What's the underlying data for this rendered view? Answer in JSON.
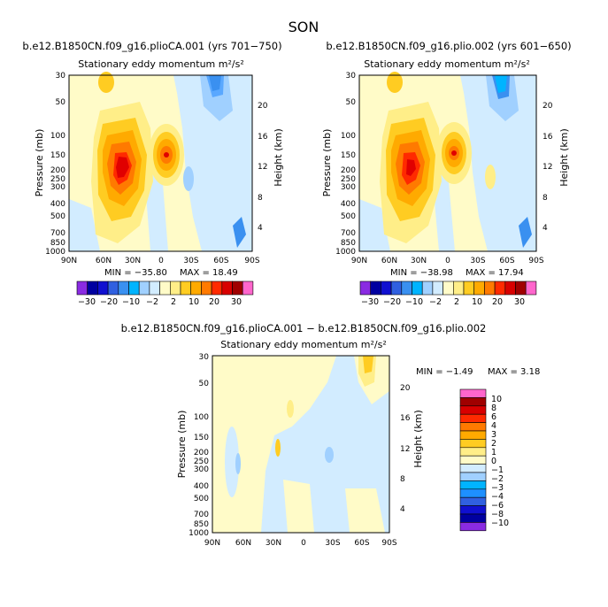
{
  "figure": {
    "season": "SON",
    "unit_html": "m²/s²"
  },
  "colors": {
    "levels": [
      -30,
      -20,
      -10,
      -2,
      2,
      10,
      20,
      30
    ],
    "panel_palette": [
      "#8a2be2",
      "#0000a0",
      "#1010d0",
      "#3060e0",
      "#3a90f0",
      "#00b4ff",
      "#a0d0ff",
      "#d2ecff",
      "#fffbc8",
      "#ffee88",
      "#ffcc22",
      "#ffaa00",
      "#ff7a00",
      "#ff2a00",
      "#d80000",
      "#a00000",
      "#ff66cc"
    ],
    "diff_palette": [
      "#8a2be2",
      "#0000a0",
      "#1010d0",
      "#3060e0",
      "#1e90ff",
      "#00b4ff",
      "#a0d0ff",
      "#d2ecff",
      "#fffbc8",
      "#ffee88",
      "#ffcc22",
      "#ffaa00",
      "#ff7a00",
      "#ff2a00",
      "#d80000",
      "#a00000",
      "#ff66cc"
    ]
  },
  "chart_data": [
    {
      "type": "heatmap",
      "title": "b.e12.B1850CN.f09_g16.plioCA.001 (yrs 701−750)",
      "subtitle": "Stationary eddy momentum  m²/s²",
      "xlabel": "",
      "ylabel": "Pressure (mb)",
      "ylabel_right": "Height (km)",
      "x_ticks": [
        "90N",
        "60N",
        "30N",
        "0",
        "30S",
        "60S",
        "90S"
      ],
      "y_ticks": [
        "30",
        "50",
        "100",
        "150",
        "200",
        "250",
        "300",
        "400",
        "500",
        "700",
        "850",
        "1000"
      ],
      "y_ticks_right": [
        "4",
        "8",
        "12",
        "16",
        "20"
      ],
      "x_range": [
        90,
        -90
      ],
      "y_range": [
        1000,
        30
      ],
      "min_text": "MIN = −35.80",
      "max_text": "MAX =  18.49",
      "colorbar_labels": [
        "−30",
        "−20",
        "−10",
        "−2",
        "2",
        "10",
        "20",
        "30"
      ]
    },
    {
      "type": "heatmap",
      "title": "b.e12.B1850CN.f09_g16.plio.002 (yrs 601−650)",
      "subtitle": "Stationary eddy momentum  m²/s²",
      "xlabel": "",
      "ylabel": "Pressure (mb)",
      "ylabel_right": "Height (km)",
      "x_ticks": [
        "90N",
        "60N",
        "30N",
        "0",
        "30S",
        "60S",
        "90S"
      ],
      "y_ticks": [
        "30",
        "50",
        "100",
        "150",
        "200",
        "250",
        "300",
        "400",
        "500",
        "700",
        "850",
        "1000"
      ],
      "y_ticks_right": [
        "4",
        "8",
        "12",
        "16",
        "20"
      ],
      "x_range": [
        90,
        -90
      ],
      "y_range": [
        1000,
        30
      ],
      "min_text": "MIN = −38.98",
      "max_text": "MAX =  17.94",
      "colorbar_labels": [
        "−30",
        "−20",
        "−10",
        "−2",
        "2",
        "10",
        "20",
        "30"
      ]
    },
    {
      "type": "heatmap",
      "title": "b.e12.B1850CN.f09_g16.plioCA.001 − b.e12.B1850CN.f09_g16.plio.002",
      "subtitle": "Stationary eddy momentum  m²/s²",
      "xlabel": "",
      "ylabel": "Pressure (mb)",
      "ylabel_right": "Height (km)",
      "x_ticks": [
        "90N",
        "60N",
        "30N",
        "0",
        "30S",
        "60S",
        "90S"
      ],
      "y_ticks": [
        "30",
        "50",
        "100",
        "150",
        "200",
        "250",
        "300",
        "400",
        "500",
        "700",
        "850",
        "1000"
      ],
      "y_ticks_right": [
        "4",
        "8",
        "12",
        "16",
        "20"
      ],
      "x_range": [
        90,
        -90
      ],
      "y_range": [
        1000,
        30
      ],
      "min_text": "MIN =  −1.49",
      "max_text": "MAX =   3.18",
      "colorbar_labels": [
        "10",
        "8",
        "6",
        "4",
        "3",
        "2",
        "1",
        "0",
        "−1",
        "−2",
        "−3",
        "−4",
        "−6",
        "−8",
        "−10"
      ]
    }
  ]
}
